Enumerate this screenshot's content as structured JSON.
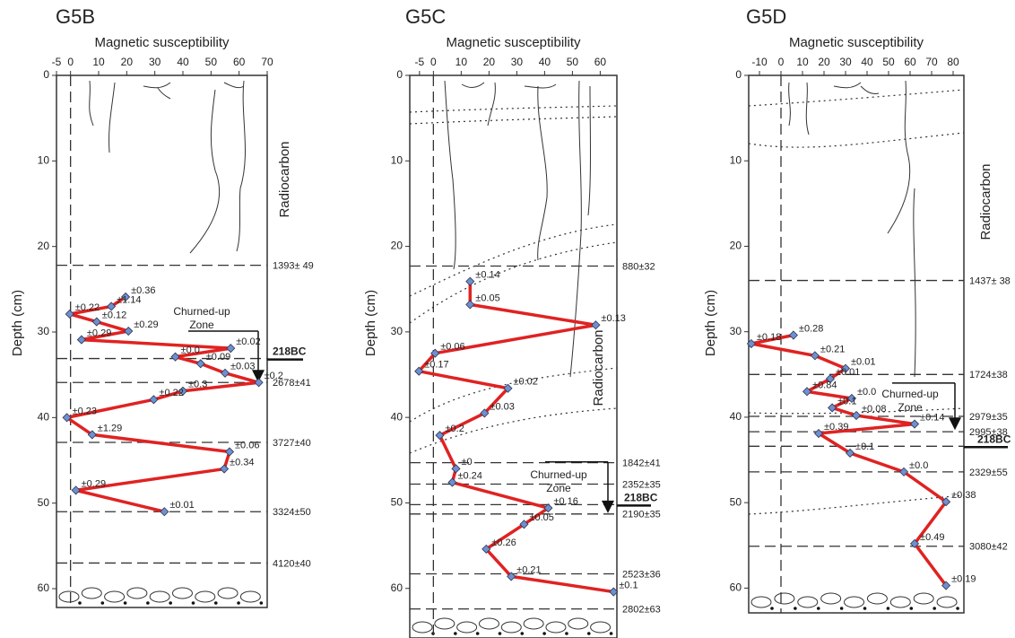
{
  "chart_data": [
    {
      "type": "line",
      "title": "G5B",
      "x_label": "Magnetic susceptibility",
      "y_label": "Depth (cm)",
      "side_label": "Radiocarbon",
      "xlim": [
        -5,
        70
      ],
      "xticks": [
        -5,
        0,
        10,
        20,
        30,
        40,
        50,
        60,
        70
      ],
      "ylim": [
        0,
        62.2
      ],
      "yticks": [
        0,
        10,
        20,
        30,
        40,
        50,
        60
      ],
      "y_inverted": true,
      "series": [
        {
          "color": "#e02222",
          "marker_color": "#6f8fcf",
          "x": [
            19.6,
            14.5,
            -0.3,
            9.3,
            20.6,
            3.9,
            57,
            37.3,
            46.3,
            55,
            67,
            40,
            29.6,
            -1.3,
            7.7,
            56.6,
            54.7,
            1.9,
            33.4
          ],
          "values": [
            25.9,
            27,
            27.9,
            28.8,
            29.9,
            30.9,
            31.9,
            32.9,
            33.7,
            34.8,
            35.9,
            36.9,
            37.9,
            40,
            42,
            44,
            46,
            48.5,
            51
          ],
          "error_labels": [
            "±0.36",
            "±1.14",
            "±0.22",
            "±0.12",
            "±0.29",
            "±0.29",
            "±0.02",
            "±0.0",
            "±0.09",
            "±0.03",
            "±0.2",
            "±0.3",
            "±0.22",
            "±0.23",
            "±1.29",
            "±0.06",
            "±0.34",
            "±0.29",
            "±0.01"
          ]
        }
      ],
      "dates": [
        {
          "depth": 22.2,
          "label": "1393± 49"
        },
        {
          "depth": 35.9,
          "label": "2678±41"
        },
        {
          "depth": 42.9,
          "label": "3727±40"
        },
        {
          "depth": 51,
          "label": "3324±50"
        },
        {
          "depth": 57,
          "label": "4120±40"
        }
      ],
      "churned_zone": {
        "text": "Churned-up Zone",
        "top": 29.9,
        "bottom": 35.9
      },
      "marker_218bc": {
        "text": "218BC",
        "depth": 33.1
      }
    },
    {
      "type": "line",
      "title": "G5C",
      "x_label": "Magnetic susceptibility",
      "y_label": "Depth (cm)",
      "side_label": "Radiocarbon",
      "xlim": [
        -8.5,
        66
      ],
      "xticks": [
        -5,
        0,
        10,
        20,
        30,
        40,
        50,
        60
      ],
      "ylim": [
        0,
        65.8
      ],
      "yticks": [
        0,
        10,
        20,
        30,
        40,
        50,
        60
      ],
      "y_inverted": true,
      "series": [
        {
          "color": "#e02222",
          "marker_color": "#6f8fcf",
          "x": [
            13.2,
            13.2,
            58.4,
            0.6,
            -5.2,
            26.8,
            18.4,
            2.3,
            8.1,
            6.8,
            41.3,
            32.6,
            19,
            28,
            64.8
          ],
          "values": [
            24.1,
            26.8,
            29.2,
            32.5,
            34.6,
            36.6,
            39.5,
            42.1,
            46,
            47.6,
            50.6,
            52.5,
            55.4,
            58.6,
            60.4
          ],
          "error_labels": [
            "±0.14",
            "±0.05",
            "±0.13",
            "±0.06",
            "±0.17",
            "±0.02",
            "±0.03",
            "±0.2",
            "±0",
            "±0.24",
            "±0.16",
            "±0.05",
            "±0.26",
            "±0.21",
            "±0.1"
          ]
        }
      ],
      "dates": [
        {
          "depth": 22.3,
          "label": "880±32"
        },
        {
          "depth": 45.3,
          "label": "1842±41"
        },
        {
          "depth": 47.8,
          "label": "2352±35"
        },
        {
          "depth": 51.3,
          "label": "2190±35"
        },
        {
          "depth": 58.3,
          "label": "2523±36"
        },
        {
          "depth": 62.4,
          "label": "2802±63"
        }
      ],
      "churned_zone": {
        "text": "Churned-up Zone",
        "top": 45.2,
        "bottom": 51.2
      },
      "marker_218bc": {
        "text": "218BC",
        "depth": 50.2
      }
    },
    {
      "type": "line",
      "title": "G5D",
      "x_label": "Magnetic susceptibility",
      "y_label": "Depth (cm)",
      "side_label": "Radiocarbon",
      "xlim": [
        -15,
        85
      ],
      "xticks": [
        -10,
        0,
        10,
        20,
        30,
        40,
        50,
        60,
        70,
        80
      ],
      "ylim": [
        0,
        62.9
      ],
      "yticks": [
        0,
        10,
        20,
        30,
        40,
        50,
        60
      ],
      "y_inverted": true,
      "series": [
        {
          "color": "#e02222",
          "marker_color": "#6f8fcf",
          "x": [
            5.8,
            -13.8,
            15.8,
            30,
            22.9,
            12.1,
            32.9,
            23.8,
            35,
            62.1,
            17.5,
            32.1,
            57.1,
            76.7,
            62.1,
            76.7
          ],
          "values": [
            30.4,
            31.4,
            32.8,
            34.3,
            35.5,
            37,
            37.8,
            38.9,
            39.8,
            40.8,
            41.9,
            44.2,
            46.4,
            49.9,
            54.8,
            59.7
          ],
          "error_labels": [
            "±0.28",
            "±0.18",
            "±0.21",
            "±0.01",
            "±0.01",
            "±0.84",
            "±0.0",
            "±0.1",
            "±0.08",
            "±0.14",
            "±0.39",
            "±0.1",
            "±0.0",
            "±0.38",
            "±0.49",
            "±0.19"
          ]
        }
      ],
      "dates": [
        {
          "depth": 24,
          "label": "1437± 38"
        },
        {
          "depth": 35,
          "label": "1724±38"
        },
        {
          "depth": 39.9,
          "label": "2979±35"
        },
        {
          "depth": 41.7,
          "label": "2995±38"
        },
        {
          "depth": 46.4,
          "label": "2329±55"
        },
        {
          "depth": 55.1,
          "label": "3080±42"
        }
      ],
      "churned_zone": {
        "text": "Churned-up Zone",
        "top": 36,
        "bottom": 41.5
      },
      "marker_218bc": {
        "text": "218BC",
        "depth": 43.4
      }
    }
  ]
}
